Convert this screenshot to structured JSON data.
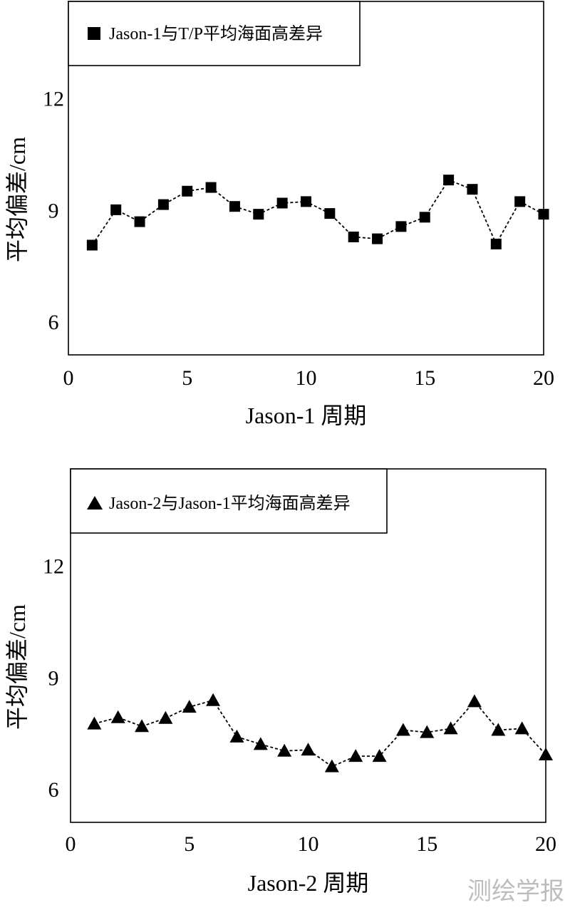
{
  "chart_data": [
    {
      "type": "line",
      "marker": "square",
      "legend": "Jason-1与T/P平均海面高差异",
      "xlabel": "Jason-1 周期",
      "ylabel": "平均偏差/cm",
      "xlim": [
        0,
        20
      ],
      "ylim": [
        5.1,
        14.6
      ],
      "xticks": [
        "0",
        "5",
        "10",
        "15",
        "20"
      ],
      "yticks": [
        "6",
        "9",
        "12"
      ],
      "series": [
        {
          "name": "Jason-1与T/P平均海面高差异",
          "x": [
            1,
            2,
            3,
            4,
            5,
            6,
            7,
            8,
            9,
            10,
            11,
            12,
            13,
            14,
            15,
            16,
            17,
            18,
            19,
            20
          ],
          "values": [
            8.05,
            9.0,
            8.68,
            9.14,
            9.5,
            9.6,
            9.09,
            8.88,
            9.18,
            9.22,
            8.9,
            8.27,
            8.22,
            8.55,
            8.8,
            9.8,
            9.55,
            8.08,
            9.22,
            8.88
          ]
        }
      ]
    },
    {
      "type": "line",
      "marker": "triangle",
      "legend": "Jason-2与Jason-1平均海面高差异",
      "xlabel": "Jason-2 周期",
      "ylabel": "平均偏差/cm",
      "xlim": [
        0,
        20
      ],
      "ylim": [
        5.1,
        14.6
      ],
      "xticks": [
        "0",
        "5",
        "10",
        "15",
        "20"
      ],
      "yticks": [
        "6",
        "9",
        "12"
      ],
      "series": [
        {
          "name": "Jason-2与Jason-1平均海面高差异",
          "x": [
            1,
            2,
            3,
            4,
            5,
            6,
            7,
            8,
            9,
            10,
            11,
            12,
            13,
            14,
            15,
            16,
            17,
            18,
            19,
            20
          ],
          "values": [
            7.75,
            7.92,
            7.68,
            7.9,
            8.2,
            8.38,
            7.4,
            7.2,
            7.02,
            7.05,
            6.6,
            6.88,
            6.88,
            7.58,
            7.52,
            7.62,
            8.35,
            7.58,
            7.62,
            6.92
          ]
        }
      ]
    }
  ],
  "watermark": "测绘学报",
  "colors": {
    "ink": "#000000",
    "watermark": "#bdbdbd"
  }
}
